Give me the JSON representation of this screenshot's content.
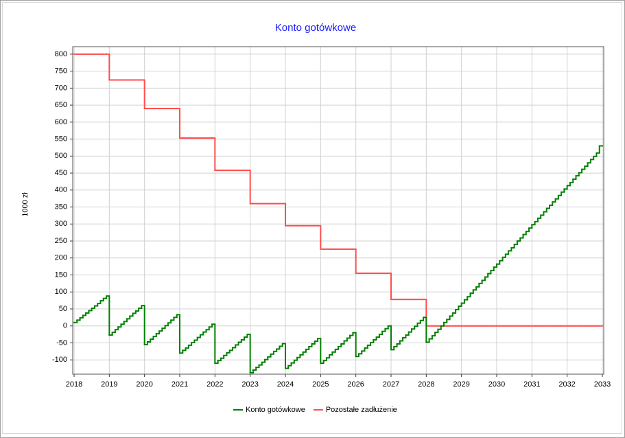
{
  "chart_data": {
    "type": "step-line",
    "title": "Konto gotówkowe",
    "y_label": "1000 zł",
    "x": [
      2018,
      2018.083,
      2018.167,
      2018.25,
      2018.333,
      2018.417,
      2018.5,
      2018.583,
      2018.667,
      2018.75,
      2018.833,
      2018.917,
      2019,
      2019.083,
      2019.167,
      2019.25,
      2019.333,
      2019.417,
      2019.5,
      2019.583,
      2019.667,
      2019.75,
      2019.833,
      2019.917,
      2020,
      2020.083,
      2020.167,
      2020.25,
      2020.333,
      2020.417,
      2020.5,
      2020.583,
      2020.667,
      2020.75,
      2020.833,
      2020.917,
      2021,
      2021.083,
      2021.167,
      2021.25,
      2021.333,
      2021.417,
      2021.5,
      2021.583,
      2021.667,
      2021.75,
      2021.833,
      2021.917,
      2022,
      2022.083,
      2022.167,
      2022.25,
      2022.333,
      2022.417,
      2022.5,
      2022.583,
      2022.667,
      2022.75,
      2022.833,
      2022.917,
      2023,
      2023.083,
      2023.167,
      2023.25,
      2023.333,
      2023.417,
      2023.5,
      2023.583,
      2023.667,
      2023.75,
      2023.833,
      2023.917,
      2024,
      2024.083,
      2024.167,
      2024.25,
      2024.333,
      2024.417,
      2024.5,
      2024.583,
      2024.667,
      2024.75,
      2024.833,
      2024.917,
      2025,
      2025.083,
      2025.167,
      2025.25,
      2025.333,
      2025.417,
      2025.5,
      2025.583,
      2025.667,
      2025.75,
      2025.833,
      2025.917,
      2026,
      2026.083,
      2026.167,
      2026.25,
      2026.333,
      2026.417,
      2026.5,
      2026.583,
      2026.667,
      2026.75,
      2026.833,
      2026.917,
      2027,
      2027.083,
      2027.167,
      2027.25,
      2027.333,
      2027.417,
      2027.5,
      2027.583,
      2027.667,
      2027.75,
      2027.833,
      2027.917,
      2028,
      2028.083,
      2028.167,
      2028.25,
      2028.333,
      2028.417,
      2028.5,
      2028.583,
      2028.667,
      2028.75,
      2028.833,
      2028.917,
      2029,
      2029.083,
      2029.167,
      2029.25,
      2029.333,
      2029.417,
      2029.5,
      2029.583,
      2029.667,
      2029.75,
      2029.833,
      2029.917,
      2030,
      2030.083,
      2030.167,
      2030.25,
      2030.333,
      2030.417,
      2030.5,
      2030.583,
      2030.667,
      2030.75,
      2030.833,
      2030.917,
      2031,
      2031.083,
      2031.167,
      2031.25,
      2031.333,
      2031.417,
      2031.5,
      2031.583,
      2031.667,
      2031.75,
      2031.833,
      2031.917,
      2032,
      2032.083,
      2032.167,
      2032.25,
      2032.333,
      2032.417,
      2032.5,
      2032.583,
      2032.667,
      2032.75,
      2032.833,
      2032.917
    ],
    "series": [
      {
        "name": "Konto gotówkowe",
        "color": "#008000",
        "values": [
          10,
          17,
          24,
          31,
          38,
          45,
          52,
          59,
          66,
          74,
          81,
          88,
          -27,
          -19,
          -11,
          -3,
          5,
          13,
          21,
          29,
          37,
          44,
          52,
          60,
          -55,
          -47,
          -39,
          -31,
          -23,
          -15,
          -7,
          1,
          9,
          17,
          25,
          33,
          -80,
          -72,
          -65,
          -57,
          -49,
          -42,
          -34,
          -26,
          -18,
          -11,
          -3,
          5,
          -110,
          -102,
          -95,
          -87,
          -79,
          -72,
          -64,
          -56,
          -48,
          -41,
          -33,
          -25,
          -138,
          -130,
          -122,
          -115,
          -107,
          -99,
          -91,
          -83,
          -75,
          -68,
          -60,
          -52,
          -125,
          -117,
          -109,
          -101,
          -93,
          -85,
          -77,
          -69,
          -61,
          -53,
          -45,
          -37,
          -110,
          -102,
          -94,
          -85,
          -77,
          -69,
          -61,
          -53,
          -44,
          -36,
          -28,
          -20,
          -90,
          -82,
          -74,
          -65,
          -57,
          -49,
          -41,
          -33,
          -25,
          -16,
          -8,
          0,
          -70,
          -61,
          -53,
          -44,
          -35,
          -27,
          -18,
          -9,
          -1,
          8,
          16,
          25,
          -48,
          -38,
          -29,
          -19,
          -10,
          0,
          10,
          19,
          29,
          38,
          48,
          58,
          67,
          77,
          86,
          96,
          106,
          115,
          125,
          134,
          144,
          154,
          163,
          173,
          182,
          192,
          202,
          211,
          221,
          230,
          240,
          250,
          259,
          269,
          278,
          288,
          298,
          307,
          317,
          326,
          336,
          346,
          355,
          365,
          374,
          384,
          394,
          403,
          413,
          422,
          432,
          442,
          451,
          461,
          470,
          480,
          490,
          499,
          509,
          530
        ]
      },
      {
        "name": "Pozostałe zadłużenie",
        "color": "#ff4d4d",
        "values": [
          800,
          800,
          800,
          800,
          800,
          800,
          800,
          800,
          800,
          800,
          800,
          800,
          724,
          724,
          724,
          724,
          724,
          724,
          724,
          724,
          724,
          724,
          724,
          724,
          640,
          640,
          640,
          640,
          640,
          640,
          640,
          640,
          640,
          640,
          640,
          640,
          553,
          553,
          553,
          553,
          553,
          553,
          553,
          553,
          553,
          553,
          553,
          553,
          458,
          458,
          458,
          458,
          458,
          458,
          458,
          458,
          458,
          458,
          458,
          458,
          360,
          360,
          360,
          360,
          360,
          360,
          360,
          360,
          360,
          360,
          360,
          360,
          295,
          295,
          295,
          295,
          295,
          295,
          295,
          295,
          295,
          295,
          295,
          295,
          226,
          226,
          226,
          226,
          226,
          226,
          226,
          226,
          226,
          226,
          226,
          226,
          155,
          155,
          155,
          155,
          155,
          155,
          155,
          155,
          155,
          155,
          155,
          155,
          78,
          78,
          78,
          78,
          78,
          78,
          78,
          78,
          78,
          78,
          78,
          78,
          0,
          0,
          0,
          0,
          0,
          0,
          0,
          0,
          0,
          0,
          0,
          0,
          0,
          0,
          0,
          0,
          0,
          0,
          0,
          0,
          0,
          0,
          0,
          0,
          0,
          0,
          0,
          0,
          0,
          0,
          0,
          0,
          0,
          0,
          0,
          0,
          0,
          0,
          0,
          0,
          0,
          0,
          0,
          0,
          0,
          0,
          0,
          0,
          0,
          0,
          0,
          0,
          0,
          0,
          0,
          0,
          0,
          0,
          0,
          0
        ]
      }
    ],
    "xlim": [
      2018,
      2033
    ],
    "xticks": [
      2018,
      2019,
      2020,
      2021,
      2022,
      2023,
      2024,
      2025,
      2026,
      2027,
      2028,
      2029,
      2030,
      2031,
      2032,
      2033
    ],
    "ylim": [
      -142,
      822
    ],
    "yticks": [
      -100,
      -50,
      0,
      50,
      100,
      150,
      200,
      250,
      300,
      350,
      400,
      450,
      500,
      550,
      600,
      650,
      700,
      750,
      800
    ],
    "grid": true,
    "legend": "bottom"
  }
}
